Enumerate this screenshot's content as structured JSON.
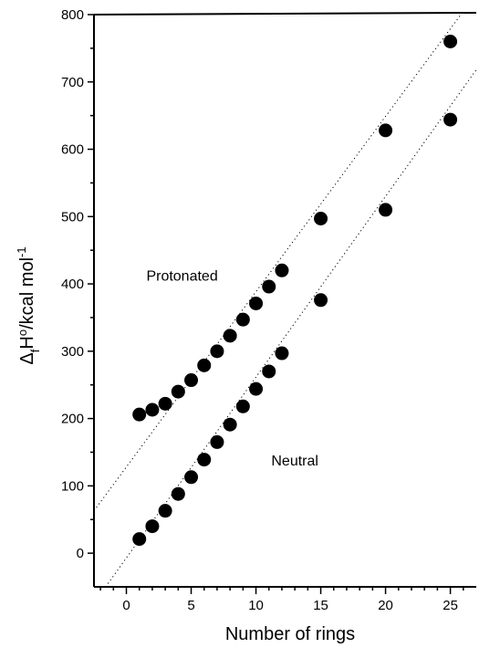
{
  "chart_data": {
    "type": "scatter",
    "title": "",
    "xlabel": "Number of rings",
    "ylabel_main": "ΔfHo/kcal mol-1",
    "ylabel_parts": {
      "delta": "Δ",
      "sub": "f",
      "h": "H",
      "sup_o": "o",
      "unit": "/kcal mol",
      "sup_exp": "-1"
    },
    "xlim": [
      -2.5,
      27
    ],
    "ylim": [
      -50,
      800
    ],
    "x_ticks_major": [
      0,
      5,
      10,
      15,
      20,
      25
    ],
    "x_tick_labels": [
      "0",
      "5",
      "10",
      "15",
      "20",
      "25"
    ],
    "y_ticks_major": [
      0,
      100,
      200,
      300,
      400,
      500,
      600,
      700,
      800
    ],
    "y_tick_labels": [
      "0",
      "100",
      "200",
      "300",
      "400",
      "500",
      "600",
      "700",
      "800"
    ],
    "grid": false,
    "series": [
      {
        "name": "Protonated",
        "x": [
          1,
          2,
          3,
          4,
          5,
          6,
          7,
          8,
          9,
          10,
          11,
          12,
          15,
          20,
          25
        ],
        "y": [
          206,
          213,
          222,
          240,
          257,
          279,
          300,
          323,
          347,
          371,
          396,
          420,
          497,
          628,
          760
        ],
        "color": "#000000"
      },
      {
        "name": "Neutral",
        "x": [
          1,
          2,
          3,
          4,
          5,
          6,
          7,
          8,
          9,
          10,
          11,
          12,
          15,
          20,
          25
        ],
        "y": [
          21,
          40,
          63,
          88,
          113,
          139,
          165,
          191,
          218,
          244,
          270,
          297,
          376,
          510,
          644
        ],
        "color": "#000000"
      }
    ],
    "fit_lines": [
      {
        "series": "Protonated",
        "x": [
          -2.5,
          27
        ],
        "y": [
          63,
          831
        ]
      },
      {
        "series": "Neutral",
        "x": [
          -1.6,
          27
        ],
        "y": [
          -50,
          718
        ]
      }
    ],
    "annotations": [
      {
        "text": "Protonated",
        "x": 4.3,
        "y": 405
      },
      {
        "text": "Neutral",
        "x": 13,
        "y": 130
      }
    ]
  }
}
